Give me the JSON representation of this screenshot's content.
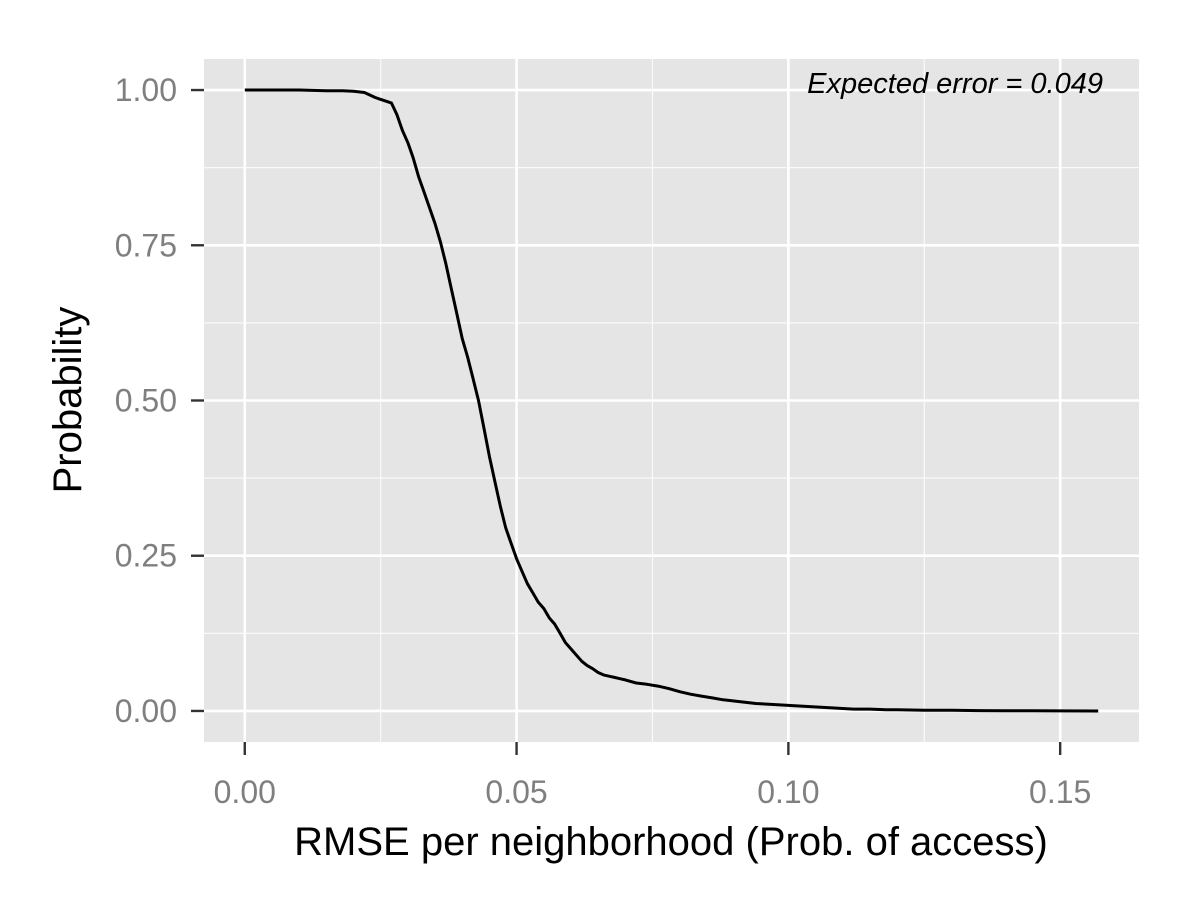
{
  "chart_data": {
    "type": "line",
    "title": "",
    "xlabel": "RMSE per neighborhood (Prob. of access)",
    "ylabel": "Probability",
    "annotation": "Expected error = 0.049",
    "xlim": [
      -0.0075,
      0.1645
    ],
    "ylim": [
      -0.05,
      1.05
    ],
    "x_ticks": [
      0.0,
      0.05,
      0.1,
      0.15
    ],
    "x_tick_labels": [
      "0.00",
      "0.05",
      "0.10",
      "0.15"
    ],
    "y_ticks": [
      0.0,
      0.25,
      0.5,
      0.75,
      1.0
    ],
    "y_tick_labels": [
      "0.00",
      "0.25",
      "0.50",
      "0.75",
      "1.00"
    ],
    "grid": true,
    "legend": "none",
    "colors": {
      "panel": "#e5e5e5",
      "grid": "#ffffff",
      "line": "#000000",
      "tick_text": "#7f7f7f"
    },
    "series": [
      {
        "x": [
          0.0,
          0.005,
          0.01,
          0.015,
          0.018,
          0.02,
          0.022,
          0.023,
          0.024,
          0.025,
          0.026,
          0.027,
          0.028,
          0.029,
          0.03,
          0.031,
          0.032,
          0.033,
          0.034,
          0.035,
          0.036,
          0.037,
          0.038,
          0.039,
          0.04,
          0.041,
          0.042,
          0.043,
          0.044,
          0.045,
          0.046,
          0.047,
          0.048,
          0.049,
          0.05,
          0.051,
          0.052,
          0.053,
          0.054,
          0.055,
          0.056,
          0.057,
          0.058,
          0.059,
          0.06,
          0.061,
          0.062,
          0.063,
          0.064,
          0.065,
          0.066,
          0.067,
          0.068,
          0.069,
          0.07,
          0.072,
          0.074,
          0.076,
          0.078,
          0.08,
          0.082,
          0.084,
          0.086,
          0.088,
          0.09,
          0.092,
          0.094,
          0.096,
          0.098,
          0.1,
          0.102,
          0.104,
          0.106,
          0.108,
          0.11,
          0.112,
          0.115,
          0.118,
          0.12,
          0.125,
          0.13,
          0.135,
          0.14,
          0.145,
          0.15,
          0.157
        ],
        "y": [
          1.0,
          1.0,
          1.0,
          0.999,
          0.999,
          0.998,
          0.996,
          0.992,
          0.988,
          0.985,
          0.982,
          0.979,
          0.96,
          0.935,
          0.915,
          0.89,
          0.86,
          0.835,
          0.81,
          0.785,
          0.755,
          0.72,
          0.68,
          0.64,
          0.6,
          0.57,
          0.535,
          0.5,
          0.455,
          0.41,
          0.37,
          0.33,
          0.295,
          0.27,
          0.245,
          0.225,
          0.205,
          0.19,
          0.175,
          0.165,
          0.15,
          0.14,
          0.125,
          0.11,
          0.1,
          0.09,
          0.08,
          0.073,
          0.068,
          0.062,
          0.058,
          0.056,
          0.054,
          0.052,
          0.05,
          0.045,
          0.043,
          0.04,
          0.036,
          0.031,
          0.027,
          0.024,
          0.021,
          0.018,
          0.016,
          0.014,
          0.012,
          0.011,
          0.01,
          0.009,
          0.008,
          0.007,
          0.006,
          0.005,
          0.004,
          0.003,
          0.003,
          0.002,
          0.002,
          0.001,
          0.001,
          0.0005,
          0.0003,
          0.0002,
          0.0001,
          0.0
        ]
      }
    ]
  }
}
